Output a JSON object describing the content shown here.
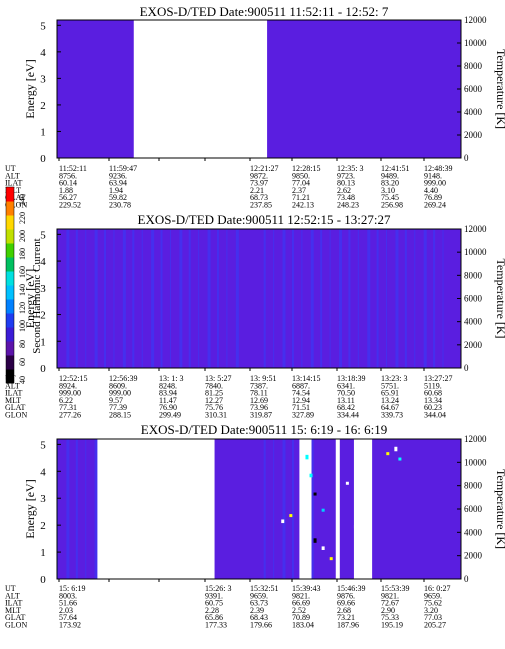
{
  "colors": {
    "background": "#5a1ee0",
    "gap": "#ffffff",
    "stripe": "#2d45ff"
  },
  "colorbar": {
    "label": "Second Harmonic Current",
    "ticks": [
      "40",
      "60",
      "80",
      "100",
      "120",
      "140",
      "160",
      "180",
      "200",
      "220",
      "240"
    ],
    "colors": [
      "#000000",
      "#2b0046",
      "#5c14aa",
      "#3b1cd6",
      "#1f3cf0",
      "#0080ff",
      "#00c0ff",
      "#00e0e0",
      "#00c060",
      "#40d000",
      "#c0e000",
      "#ffd800",
      "#ff8000",
      "#ff0000"
    ]
  },
  "chart_data": [
    {
      "type": "heatmap",
      "title": "EXOS-D/TED   Date:900511  11:52:11 - 12:52: 7",
      "ylabel": "Energy [eV]",
      "y2label": "Temperature [K]",
      "y_ticks": [
        "0",
        "1",
        "2",
        "3",
        "4",
        "5"
      ],
      "y2_ticks": [
        "0",
        "2000",
        "4000",
        "6000",
        "8000",
        "10000",
        "12000"
      ],
      "ylim": [
        0,
        5.2
      ],
      "y2lim": [
        0,
        12000
      ],
      "data_gaps": [
        [
          0.19,
          0.52
        ]
      ],
      "stripe_count": 0,
      "spots": [],
      "ephemeris": {
        "rows": [
          "UT",
          "ALT",
          "ILAT",
          "MLT",
          "GLAT",
          "GLON"
        ],
        "columns": [
          {
            "UT": "11:52:11",
            "ALT": "8756.",
            "ILAT": "60.14",
            "MLT": "1.88",
            "GLAT": "56.27",
            "GLON": "229.52"
          },
          {
            "UT": "11:59:47",
            "ALT": "9236.",
            "ILAT": "63.94",
            "MLT": "1.94",
            "GLAT": "59.82",
            "GLON": "230.78"
          },
          {
            "UT": "",
            "ALT": "",
            "ILAT": "",
            "MLT": "",
            "GLAT": "",
            "GLON": ""
          },
          {
            "UT": "",
            "ALT": "",
            "ILAT": "",
            "MLT": "",
            "GLAT": "",
            "GLON": ""
          },
          {
            "UT": "12:21:27",
            "ALT": "9872.",
            "ILAT": "73.97",
            "MLT": "2.21",
            "GLAT": "68.73",
            "GLON": "237.85"
          },
          {
            "UT": "12:28:15",
            "ALT": "9850.",
            "ILAT": "77.04",
            "MLT": "2.37",
            "GLAT": "71.21",
            "GLON": "242.13"
          },
          {
            "UT": "12:35: 3",
            "ALT": "9723.",
            "ILAT": "80.13",
            "MLT": "2.62",
            "GLAT": "73.48",
            "GLON": "248.23"
          },
          {
            "UT": "12:41:51",
            "ALT": "9489.",
            "ILAT": "83.20",
            "MLT": "3.10",
            "GLAT": "75.45",
            "GLON": "256.98"
          },
          {
            "UT": "12:48:39",
            "ALT": "9148.",
            "ILAT": "999.00",
            "MLT": "4.40",
            "GLAT": "76.89",
            "GLON": "269.24"
          }
        ]
      }
    },
    {
      "type": "heatmap",
      "title": "EXOS-D/TED   Date:900511  12:52:15 - 13:27:27",
      "ylabel": "Energy [eV]",
      "y2label": "Temperature [K]",
      "y_ticks": [
        "0",
        "1",
        "2",
        "3",
        "4",
        "5"
      ],
      "y2_ticks": [
        "0",
        "2000",
        "4000",
        "6000",
        "8000",
        "10000",
        "12000"
      ],
      "ylim": [
        0,
        5.2
      ],
      "y2lim": [
        0,
        12000
      ],
      "data_gaps": [],
      "stripe_count": 40,
      "spots": [],
      "ephemeris": {
        "rows": [
          "UT",
          "ALT",
          "ILAT",
          "MLT",
          "GLAT",
          "GLON"
        ],
        "columns": [
          {
            "UT": "12:52:15",
            "ALT": "8924.",
            "ILAT": "999.00",
            "MLT": "6.22",
            "GLAT": "77.31",
            "GLON": "277.26"
          },
          {
            "UT": "12:56:39",
            "ALT": "8609.",
            "ILAT": "999.00",
            "MLT": "9.57",
            "GLAT": "77.39",
            "GLON": "288.15"
          },
          {
            "UT": "13: 1: 3",
            "ALT": "8248.",
            "ILAT": "83.94",
            "MLT": "11.47",
            "GLAT": "76.90",
            "GLON": "299.49"
          },
          {
            "UT": "13: 5:27",
            "ALT": "7840.",
            "ILAT": "81.25",
            "MLT": "12.27",
            "GLAT": "75.76",
            "GLON": "310.31"
          },
          {
            "UT": "13: 9:51",
            "ALT": "7387.",
            "ILAT": "78.11",
            "MLT": "12.69",
            "GLAT": "73.96",
            "GLON": "319.87"
          },
          {
            "UT": "13:14:15",
            "ALT": "6887.",
            "ILAT": "74.54",
            "MLT": "12.94",
            "GLAT": "71.51",
            "GLON": "327.89"
          },
          {
            "UT": "13:18:39",
            "ALT": "6341.",
            "ILAT": "70.50",
            "MLT": "13.11",
            "GLAT": "68.42",
            "GLON": "334.44"
          },
          {
            "UT": "13:23: 3",
            "ALT": "5751.",
            "ILAT": "65.91",
            "MLT": "13.24",
            "GLAT": "64.67",
            "GLON": "339.73"
          },
          {
            "UT": "13:27:27",
            "ALT": "5119.",
            "ILAT": "60.68",
            "MLT": "13.34",
            "GLAT": "60.23",
            "GLON": "344.04"
          }
        ]
      }
    },
    {
      "type": "heatmap",
      "title": "EXOS-D/TED   Date:900511  15: 6:19 - 16: 6:19",
      "ylabel": "Energy [eV]",
      "y2label": "Temperature [K]",
      "y_ticks": [
        "0",
        "1",
        "2",
        "3",
        "4",
        "5"
      ],
      "y2_ticks": [
        "0",
        "2000",
        "4000",
        "6000",
        "8000",
        "10000",
        "12000"
      ],
      "ylim": [
        0,
        5.2
      ],
      "y2lim": [
        0,
        12000
      ],
      "data_gaps": [
        [
          0.1,
          0.39
        ],
        [
          0.6,
          0.63
        ],
        [
          0.69,
          0.7
        ],
        [
          0.735,
          0.78
        ]
      ],
      "stripe_count": 12,
      "spots": [
        {
          "t": 0.61,
          "e": 4.9,
          "c": "#ffffff",
          "r": 0.06
        },
        {
          "t": 0.62,
          "e": 4.5,
          "c": "#00ffff",
          "r": 0.05
        },
        {
          "t": 0.63,
          "e": 3.8,
          "c": "#00ffff",
          "r": 0.04
        },
        {
          "t": 0.64,
          "e": 3.1,
          "c": "#000000",
          "r": 0.03
        },
        {
          "t": 0.66,
          "e": 2.5,
          "c": "#00d0ff",
          "r": 0.03
        },
        {
          "t": 0.58,
          "e": 2.3,
          "c": "#ffff00",
          "r": 0.03
        },
        {
          "t": 0.56,
          "e": 2.1,
          "c": "#ffffff",
          "r": 0.04
        },
        {
          "t": 0.64,
          "e": 1.4,
          "c": "#000000",
          "r": 0.05
        },
        {
          "t": 0.66,
          "e": 1.1,
          "c": "#ffffff",
          "r": 0.04
        },
        {
          "t": 0.68,
          "e": 0.7,
          "c": "#ffff00",
          "r": 0.03
        },
        {
          "t": 0.72,
          "e": 3.5,
          "c": "#ffffff",
          "r": 0.03
        },
        {
          "t": 0.74,
          "e": 1.9,
          "c": "#ffffff",
          "r": 0.04
        },
        {
          "t": 0.84,
          "e": 4.8,
          "c": "#ffffff",
          "r": 0.05
        },
        {
          "t": 0.82,
          "e": 4.6,
          "c": "#ffff00",
          "r": 0.03
        },
        {
          "t": 0.85,
          "e": 4.4,
          "c": "#00ffff",
          "r": 0.03
        }
      ],
      "ephemeris": {
        "rows": [
          "UT",
          "ALT",
          "ILAT",
          "MLT",
          "GLAT",
          "GLON"
        ],
        "columns": [
          {
            "UT": "15: 6:19",
            "ALT": "8003.",
            "ILAT": "51.66",
            "MLT": "2.03",
            "GLAT": "57.64",
            "GLON": "173.92"
          },
          {
            "UT": "",
            "ALT": "",
            "ILAT": "",
            "MLT": "",
            "GLAT": "",
            "GLON": ""
          },
          {
            "UT": "",
            "ALT": "",
            "ILAT": "",
            "MLT": "",
            "GLAT": "",
            "GLON": ""
          },
          {
            "UT": "15:26: 3",
            "ALT": "9391.",
            "ILAT": "60.75",
            "MLT": "2.28",
            "GLAT": "65.86",
            "GLON": "177.33"
          },
          {
            "UT": "15:32:51",
            "ALT": "9659.",
            "ILAT": "63.73",
            "MLT": "2.39",
            "GLAT": "68.43",
            "GLON": "179.66"
          },
          {
            "UT": "15:39:43",
            "ALT": "9821.",
            "ILAT": "66.69",
            "MLT": "2.52",
            "GLAT": "70.89",
            "GLON": "183.04"
          },
          {
            "UT": "15:46:39",
            "ALT": "9876.",
            "ILAT": "69.66",
            "MLT": "2.68",
            "GLAT": "73.21",
            "GLON": "187.96"
          },
          {
            "UT": "15:53:39",
            "ALT": "9821.",
            "ILAT": "72.67",
            "MLT": "2.90",
            "GLAT": "75.33",
            "GLON": "195.19"
          },
          {
            "UT": "16: 0:27",
            "ALT": "9659.",
            "ILAT": "75.62",
            "MLT": "3.20",
            "GLAT": "77.03",
            "GLON": "205.27"
          }
        ]
      }
    }
  ]
}
